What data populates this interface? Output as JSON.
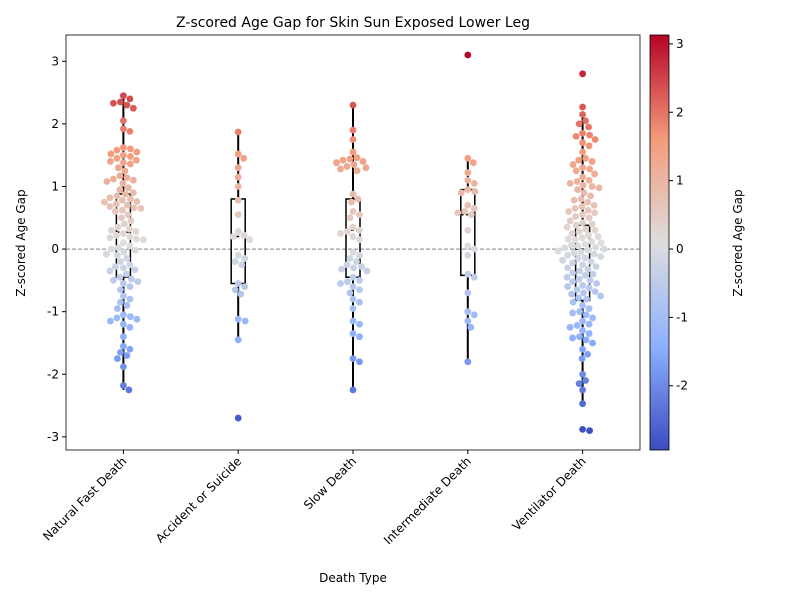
{
  "chart_data": {
    "type": "swarm",
    "title": "Z-scored Age Gap for Skin Sun Exposed Lower Leg",
    "xlabel": "Death Type",
    "ylabel": "Z-scored Age Gap",
    "categories": [
      "Natural Fast Death",
      "Accident or Suicide",
      "Slow Death",
      "Intermediate Death",
      "Ventilator Death"
    ],
    "values": [
      [
        2.45,
        2.4,
        2.35,
        2.33,
        2.3,
        2.25,
        2.05,
        1.92,
        1.88,
        1.62,
        1.6,
        1.58,
        1.55,
        1.52,
        1.5,
        1.48,
        1.45,
        1.42,
        1.4,
        1.38,
        1.36,
        1.3,
        1.25,
        1.17,
        1.14,
        1.12,
        1.1,
        1.08,
        1.05,
        0.98,
        0.95,
        0.9,
        0.88,
        0.85,
        0.82,
        0.8,
        0.78,
        0.76,
        0.75,
        0.72,
        0.7,
        0.68,
        0.66,
        0.65,
        0.62,
        0.6,
        0.55,
        0.5,
        0.45,
        0.4,
        0.35,
        0.32,
        0.3,
        0.28,
        0.25,
        0.22,
        0.2,
        0.18,
        0.16,
        0.15,
        0.1,
        0.05,
        0.02,
        0,
        -0.02,
        -0.05,
        -0.08,
        -0.1,
        -0.15,
        -0.2,
        -0.25,
        -0.28,
        -0.3,
        -0.33,
        -0.35,
        -0.4,
        -0.45,
        -0.48,
        -0.5,
        -0.52,
        -0.55,
        -0.6,
        -0.65,
        -0.75,
        -0.8,
        -0.85,
        -0.9,
        -0.95,
        -1.05,
        -1.08,
        -1.1,
        -1.12,
        -1.15,
        -1.2,
        -1.25,
        -1.4,
        -1.55,
        -1.6,
        -1.65,
        -1.7,
        -1.75,
        -1.88,
        -2.18,
        -2.25
      ],
      [
        1.87,
        1.52,
        1.45,
        1.3,
        1.15,
        1.0,
        0.78,
        0.55,
        0.28,
        0.22,
        0.2,
        0.15,
        -0.1,
        -0.15,
        -0.2,
        -0.25,
        -0.55,
        -0.6,
        -0.65,
        -0.72,
        -1.12,
        -1.15,
        -1.45,
        -2.7
      ],
      [
        2.3,
        1.9,
        1.75,
        1.55,
        1.46,
        1.44,
        1.42,
        1.4,
        1.38,
        1.35,
        1.32,
        1.3,
        1.28,
        1.25,
        0.88,
        0.8,
        0.75,
        0.6,
        0.55,
        0.5,
        0.35,
        0.3,
        0.28,
        0.25,
        0.2,
        0.15,
        -0.05,
        -0.1,
        -0.15,
        -0.2,
        -0.25,
        -0.28,
        -0.3,
        -0.32,
        -0.35,
        -0.45,
        -0.5,
        -0.52,
        -0.55,
        -0.6,
        -0.65,
        -0.7,
        -0.8,
        -0.85,
        -0.95,
        -1.15,
        -1.2,
        -1.35,
        -1.4,
        -1.75,
        -1.8,
        -2.25
      ],
      [
        3.1,
        1.45,
        1.38,
        1.22,
        1.1,
        1.05,
        0.95,
        0.92,
        0.9,
        0.7,
        0.65,
        0.6,
        0.58,
        0.55,
        0.3,
        0.05,
        0,
        -0.1,
        -0.4,
        -0.45,
        -0.7,
        -1.0,
        -1.05,
        -1.15,
        -1.25,
        -1.8
      ],
      [
        2.8,
        2.27,
        2.15,
        2.05,
        2.0,
        1.95,
        1.85,
        1.82,
        1.8,
        1.75,
        1.7,
        1.65,
        1.55,
        1.45,
        1.42,
        1.4,
        1.35,
        1.3,
        1.28,
        1.25,
        1.2,
        1.15,
        1.1,
        1.08,
        1.05,
        1.02,
        1.0,
        0.98,
        0.95,
        0.9,
        0.85,
        0.8,
        0.78,
        0.75,
        0.7,
        0.68,
        0.65,
        0.62,
        0.6,
        0.58,
        0.55,
        0.52,
        0.5,
        0.45,
        0.42,
        0.4,
        0.38,
        0.35,
        0.32,
        0.3,
        0.28,
        0.25,
        0.22,
        0.2,
        0.18,
        0.16,
        0.15,
        0.12,
        0.1,
        0.08,
        0.06,
        0.05,
        0.03,
        0.02,
        0,
        -0.02,
        -0.03,
        -0.05,
        -0.06,
        -0.08,
        -0.1,
        -0.12,
        -0.14,
        -0.15,
        -0.18,
        -0.2,
        -0.22,
        -0.25,
        -0.28,
        -0.3,
        -0.32,
        -0.35,
        -0.38,
        -0.4,
        -0.42,
        -0.45,
        -0.48,
        -0.5,
        -0.52,
        -0.55,
        -0.58,
        -0.6,
        -0.62,
        -0.65,
        -0.68,
        -0.7,
        -0.72,
        -0.75,
        -0.78,
        -0.8,
        -0.85,
        -0.9,
        -0.95,
        -1.0,
        -1.02,
        -1.05,
        -1.1,
        -1.15,
        -1.2,
        -1.22,
        -1.25,
        -1.3,
        -1.35,
        -1.4,
        -1.42,
        -1.45,
        -1.5,
        -1.6,
        -1.68,
        -1.75,
        -2.0,
        -2.1,
        -2.15,
        -2.25,
        -2.47,
        -2.88,
        -2.9
      ]
    ],
    "boxes": [
      {
        "low": -2.25,
        "q1": -0.45,
        "median": 0.27,
        "q3": 0.88,
        "high": 2.45
      },
      {
        "low": -1.45,
        "q1": -0.55,
        "median": 0.2,
        "q3": 0.8,
        "high": 1.87
      },
      {
        "low": -2.25,
        "q1": -0.45,
        "median": 0.3,
        "q3": 0.8,
        "high": 2.3
      },
      {
        "low": -1.8,
        "q1": -0.42,
        "median": 0.55,
        "q3": 0.95,
        "high": 1.45
      },
      {
        "low": -2.47,
        "q1": -0.82,
        "median": 0.0,
        "q3": 0.38,
        "high": 2.15
      }
    ],
    "hline": 0,
    "ylim": [
      -3.21,
      3.42
    ],
    "yticks": [
      -3,
      -2,
      -1,
      0,
      1,
      2,
      3
    ],
    "colorbar": {
      "label": "Z-scored Age Gap",
      "clim": [
        -2.94,
        3.13
      ],
      "ticks": [
        -2,
        -1,
        0,
        1,
        2,
        3
      ],
      "colors": [
        "#3b4cc0",
        "#8db0fe",
        "#dddddd",
        "#f49a7b",
        "#b40426"
      ]
    }
  }
}
